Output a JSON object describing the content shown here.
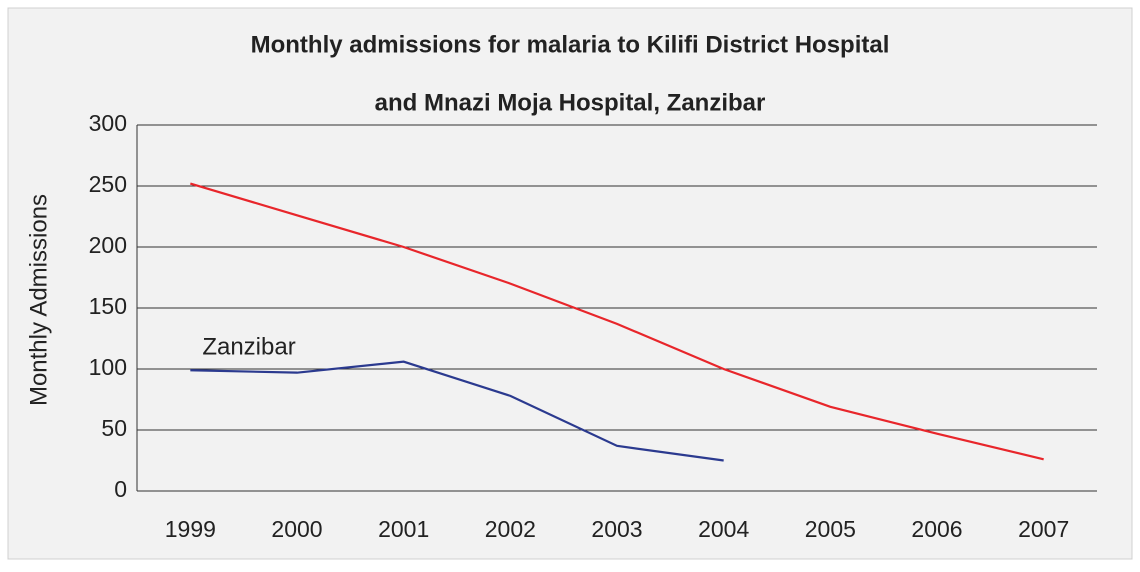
{
  "chart_data": {
    "type": "line",
    "title": [
      "Monthly admissions for malaria to Kilifi District Hospital",
      "and Mnazi Moja Hospital, Zanzibar"
    ],
    "y_label": "Monthly Admissions",
    "categories": [
      "1999",
      "2000",
      "2001",
      "2002",
      "2003",
      "2004",
      "2005",
      "2006",
      "2007"
    ],
    "series": [
      {
        "color": "#e8262b",
        "values": [
          252,
          226,
          200,
          170,
          137,
          100,
          69,
          47,
          26
        ]
      },
      {
        "name": "Zanzibar",
        "color": "#2b3a8f",
        "values": [
          99,
          97,
          106,
          78,
          37,
          25,
          null,
          null,
          null
        ]
      }
    ],
    "ylim": [
      0,
      300
    ],
    "yticks": [
      0,
      50,
      100,
      150,
      200,
      250,
      300
    ],
    "grid": true
  }
}
